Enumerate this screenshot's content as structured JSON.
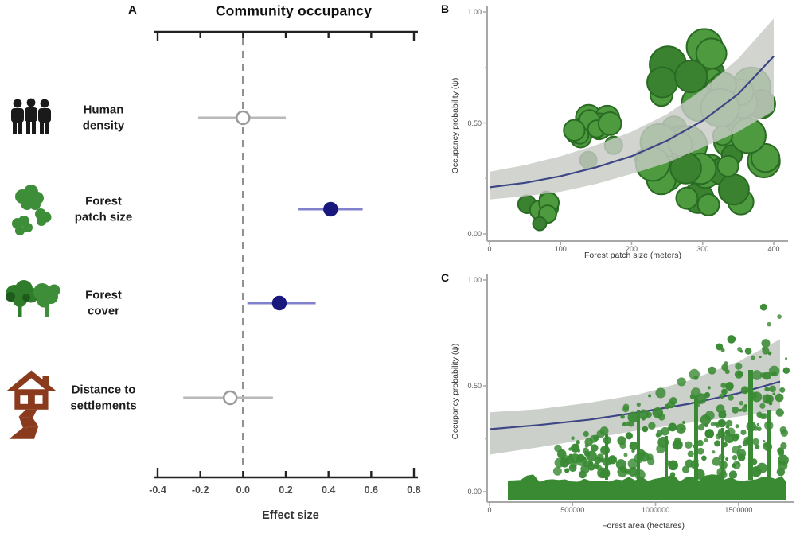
{
  "figure": {
    "panel_a": {
      "letter": "A",
      "title": "Community occupancy",
      "xlabel": "Effect size"
    },
    "panel_b": {
      "letter": "B",
      "ylabel": "Occupancy probability (ψ)",
      "xlabel": "Forest patch size (meters)"
    },
    "panel_c": {
      "letter": "C",
      "ylabel": "Occupancy probability (ψ)",
      "xlabel": "Forest area (hectares)"
    }
  },
  "chart_data": [
    {
      "id": "A",
      "type": "scatter",
      "subtype": "dot-whisker-forest-plot",
      "title": "Community occupancy",
      "xlabel": "Effect size",
      "xlim": [
        -0.4,
        0.8
      ],
      "zero_line": 0.0,
      "x_ticks": [
        {
          "v": -0.4,
          "label": "-0.4"
        },
        {
          "v": -0.2,
          "label": "-0.2"
        },
        {
          "v": 0.0,
          "label": "0.0"
        },
        {
          "v": 0.2,
          "label": "0.2"
        },
        {
          "v": 0.4,
          "label": "0.4"
        },
        {
          "v": 0.6,
          "label": "0.6"
        },
        {
          "v": 0.8,
          "label": "0.8"
        }
      ],
      "rows": [
        {
          "label": "Human\ndensity",
          "icon": "human-group-icon",
          "estimate": 0.0,
          "ci_low": -0.21,
          "ci_high": 0.2,
          "style": "open"
        },
        {
          "label": "Forest\npatch size",
          "icon": "forest-patch-icon",
          "estimate": 0.41,
          "ci_low": 0.26,
          "ci_high": 0.56,
          "style": "filled"
        },
        {
          "label": "Forest\ncover",
          "icon": "forest-cover-icon",
          "estimate": 0.17,
          "ci_low": 0.02,
          "ci_high": 0.34,
          "style": "filled"
        },
        {
          "label": "Distance to\nsettlements",
          "icon": "house-path-icon",
          "estimate": -0.06,
          "ci_low": -0.28,
          "ci_high": 0.14,
          "style": "open"
        }
      ],
      "colors": {
        "significant_point": "#17177d",
        "significant_ci": "#8080cc",
        "open_point_border": "#9b9b9b",
        "open_ci": "#b9b9b9",
        "axis": "#222222",
        "zero_line": "#858585"
      }
    },
    {
      "id": "B",
      "type": "line",
      "xlabel": "Forest patch size (meters)",
      "ylabel": "Occupancy probability (ψ)",
      "xlim": [
        0,
        400
      ],
      "ylim": [
        0.0,
        1.0
      ],
      "x_ticks": [
        {
          "v": 0,
          "label": "0"
        },
        {
          "v": 100,
          "label": "100"
        },
        {
          "v": 200,
          "label": "200"
        },
        {
          "v": 300,
          "label": "300"
        },
        {
          "v": 400,
          "label": "400"
        }
      ],
      "y_ticks": [
        {
          "v": 1.0,
          "label": "1.00"
        },
        {
          "v": 0.5,
          "label": "0.50"
        },
        {
          "v": 0.0,
          "label": "0.00"
        }
      ],
      "y_minor_ticks": [
        0.25,
        0.75
      ],
      "line": {
        "x": [
          0,
          50,
          100,
          150,
          200,
          250,
          300,
          350,
          400
        ],
        "y": [
          0.21,
          0.23,
          0.26,
          0.3,
          0.35,
          0.42,
          0.51,
          0.63,
          0.8
        ]
      },
      "band": {
        "x": [
          0,
          50,
          100,
          150,
          200,
          250,
          300,
          350,
          400
        ],
        "upper": [
          0.28,
          0.31,
          0.35,
          0.4,
          0.46,
          0.54,
          0.65,
          0.79,
          0.97
        ],
        "lower": [
          0.155,
          0.17,
          0.19,
          0.225,
          0.27,
          0.32,
          0.39,
          0.46,
          0.555
        ]
      },
      "line_color": "#3d4785",
      "band_color": "#c7cbc4",
      "tree_color": "#4d9a3f",
      "legend": "none",
      "grid": false
    },
    {
      "id": "C",
      "type": "line",
      "xlabel": "Forest area (hectares)",
      "ylabel": "Occupancy probability (ψ)",
      "xlim": [
        0,
        1750000
      ],
      "ylim": [
        0.0,
        1.0
      ],
      "x_ticks": [
        {
          "v": 0,
          "label": "0"
        },
        {
          "v": 500000,
          "label": "500000"
        },
        {
          "v": 1000000,
          "label": "1000000"
        },
        {
          "v": 1500000,
          "label": "1500000"
        }
      ],
      "y_ticks": [
        {
          "v": 1.0,
          "label": "1.00"
        },
        {
          "v": 0.5,
          "label": "0.50"
        },
        {
          "v": 0.0,
          "label": "0.00"
        }
      ],
      "y_minor_ticks": [
        0.25,
        0.75
      ],
      "line": {
        "x": [
          0,
          300000,
          600000,
          900000,
          1200000,
          1500000,
          1750000
        ],
        "y": [
          0.295,
          0.315,
          0.34,
          0.375,
          0.415,
          0.465,
          0.52
        ]
      },
      "band": {
        "x": [
          0,
          300000,
          600000,
          900000,
          1200000,
          1500000,
          1750000
        ],
        "upper": [
          0.375,
          0.39,
          0.42,
          0.46,
          0.525,
          0.615,
          0.72
        ],
        "lower": [
          0.175,
          0.21,
          0.25,
          0.29,
          0.325,
          0.355,
          0.385
        ]
      },
      "line_color": "#3d4785",
      "band_color": "#c7cbc4",
      "tree_color": "#3a8a34",
      "legend": "none",
      "grid": false
    }
  ]
}
